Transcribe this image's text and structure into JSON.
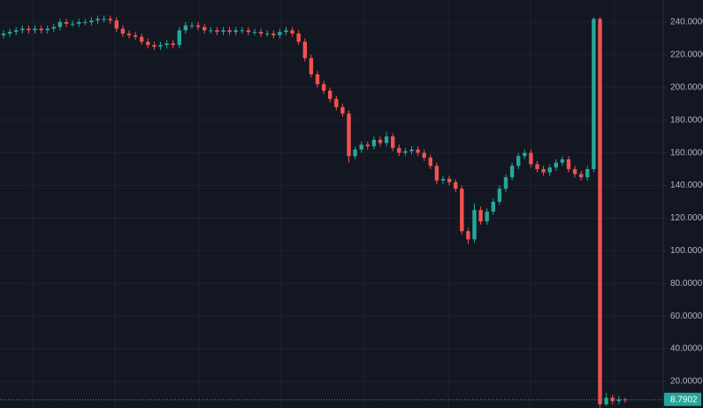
{
  "chart_data": {
    "type": "candlestick",
    "up_color": "#26a69a",
    "down_color": "#ef5350",
    "grid": true,
    "ylim": [
      3.75,
      253.55
    ],
    "yticks": [
      {
        "value": 20,
        "label": "20.0000"
      },
      {
        "value": 40,
        "label": "40.0000"
      },
      {
        "value": 60,
        "label": "60.0000"
      },
      {
        "value": 80,
        "label": "80.0000"
      },
      {
        "value": 100,
        "label": "100.0000"
      },
      {
        "value": 120,
        "label": "120.0000"
      },
      {
        "value": 140,
        "label": "140.0000"
      },
      {
        "value": 160,
        "label": "160.0000"
      },
      {
        "value": 180,
        "label": "180.0000"
      },
      {
        "value": 200,
        "label": "200.0000"
      },
      {
        "value": 220,
        "label": "220.0000"
      },
      {
        "value": 240,
        "label": "240.0000"
      }
    ],
    "last_price": {
      "value": 8.7902,
      "label": "8.7902"
    },
    "open": [
      232,
      233,
      234,
      235,
      236,
      235,
      236,
      235,
      236,
      237,
      240,
      239,
      239,
      240,
      240,
      241,
      242,
      242,
      241,
      236,
      233,
      232,
      231,
      228,
      226,
      225,
      226,
      227,
      226,
      235,
      238,
      238,
      237,
      235,
      235,
      234,
      235,
      234,
      235,
      235,
      234,
      234,
      233,
      233,
      232,
      234,
      235,
      233,
      228,
      218,
      208,
      202,
      198,
      193,
      188,
      184,
      158,
      162,
      165,
      164,
      168,
      166,
      170,
      163,
      160,
      161,
      162,
      160,
      157,
      152,
      143,
      144,
      142,
      138,
      112,
      107,
      125,
      118,
      124,
      130,
      138,
      145,
      152,
      158,
      160,
      153,
      150,
      148,
      151,
      154,
      156,
      150,
      147,
      145,
      150,
      242,
      6,
      10,
      8,
      9
    ],
    "high": [
      235,
      236,
      237,
      238,
      238,
      238,
      238,
      238,
      239,
      242,
      242,
      241,
      242,
      242,
      243,
      244,
      244,
      244,
      243,
      238,
      235,
      234,
      233,
      230,
      228,
      228,
      229,
      229,
      237,
      240,
      240,
      240,
      239,
      237,
      237,
      237,
      237,
      237,
      237,
      237,
      236,
      236,
      235,
      235,
      236,
      237,
      237,
      235,
      230,
      220,
      210,
      204,
      200,
      195,
      190,
      186,
      164,
      167,
      167,
      170,
      170,
      173,
      172,
      165,
      163,
      164,
      164,
      162,
      159,
      154,
      146,
      146,
      144,
      140,
      114,
      129,
      127,
      126,
      132,
      140,
      147,
      154,
      160,
      162,
      162,
      155,
      152,
      153,
      156,
      158,
      158,
      152,
      149,
      152,
      243,
      243,
      13,
      12,
      11,
      10
    ],
    "low": [
      230,
      231,
      232,
      233,
      233,
      233,
      233,
      233,
      234,
      235,
      237,
      237,
      237,
      238,
      238,
      239,
      240,
      239,
      234,
      231,
      230,
      229,
      226,
      224,
      223,
      223,
      224,
      224,
      224,
      233,
      236,
      235,
      233,
      233,
      232,
      232,
      232,
      232,
      233,
      232,
      232,
      231,
      231,
      230,
      230,
      232,
      231,
      226,
      216,
      206,
      200,
      196,
      191,
      186,
      182,
      154,
      156,
      160,
      162,
      162,
      164,
      164,
      161,
      158,
      158,
      159,
      158,
      155,
      150,
      141,
      141,
      140,
      136,
      110,
      104,
      105,
      116,
      116,
      122,
      128,
      136,
      143,
      150,
      156,
      151,
      148,
      146,
      146,
      149,
      152,
      148,
      145,
      143,
      143,
      148,
      4,
      5,
      6,
      6,
      7
    ],
    "close": [
      233,
      234,
      235,
      236,
      235,
      236,
      235,
      236,
      237,
      240,
      239,
      239,
      240,
      240,
      241,
      242,
      242,
      241,
      236,
      233,
      232,
      231,
      228,
      226,
      225,
      226,
      227,
      226,
      235,
      238,
      238,
      237,
      235,
      235,
      234,
      235,
      234,
      235,
      235,
      234,
      234,
      233,
      233,
      232,
      234,
      235,
      233,
      228,
      218,
      208,
      202,
      198,
      193,
      188,
      184,
      158,
      162,
      165,
      164,
      168,
      166,
      170,
      163,
      160,
      161,
      162,
      160,
      157,
      152,
      143,
      144,
      142,
      138,
      112,
      107,
      125,
      118,
      124,
      130,
      138,
      145,
      152,
      158,
      160,
      153,
      150,
      148,
      151,
      154,
      156,
      150,
      147,
      145,
      150,
      242,
      6,
      10,
      8,
      9,
      8.79
    ]
  }
}
